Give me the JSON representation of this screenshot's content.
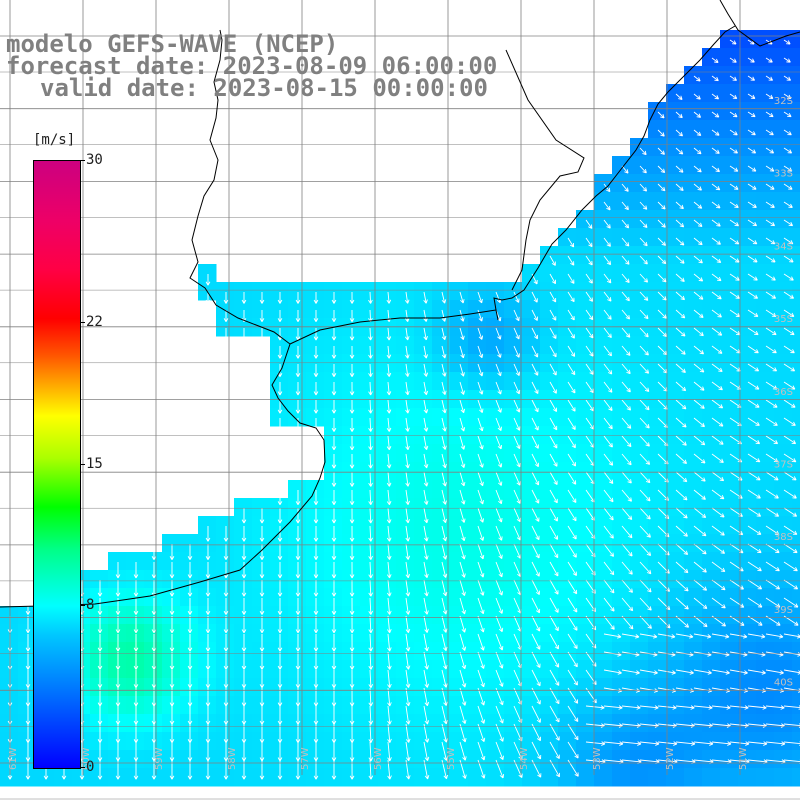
{
  "title": {
    "line1": "modelo GEFS-WAVE (NCEP)",
    "line2": "forecast date: 2023-08-09 06:00:00",
    "line3": "valid date: 2023-08-15 00:00:00"
  },
  "colorbar": {
    "unit": "[m/s]",
    "min": 0,
    "max": 30,
    "ticks": [
      {
        "value": 30,
        "label": "30"
      },
      {
        "value": 22,
        "label": "22"
      },
      {
        "value": 15,
        "label": "15"
      },
      {
        "value": 8,
        "label": "8"
      },
      {
        "value": 0,
        "label": "0"
      }
    ]
  },
  "map": {
    "field": "wind speed",
    "lat_labels": [
      "32S",
      "33S",
      "34S",
      "35S",
      "36S",
      "37S",
      "38S",
      "39S",
      "40S"
    ],
    "lon_labels": [
      "61W",
      "60W",
      "59W",
      "58W",
      "57W",
      "56W",
      "55W",
      "54W",
      "53W",
      "52W",
      "51W"
    ],
    "colors": {
      "land": "#ffffff",
      "coast": "#000000",
      "grid": "#808080",
      "arrow": "#ffffff"
    }
  }
}
